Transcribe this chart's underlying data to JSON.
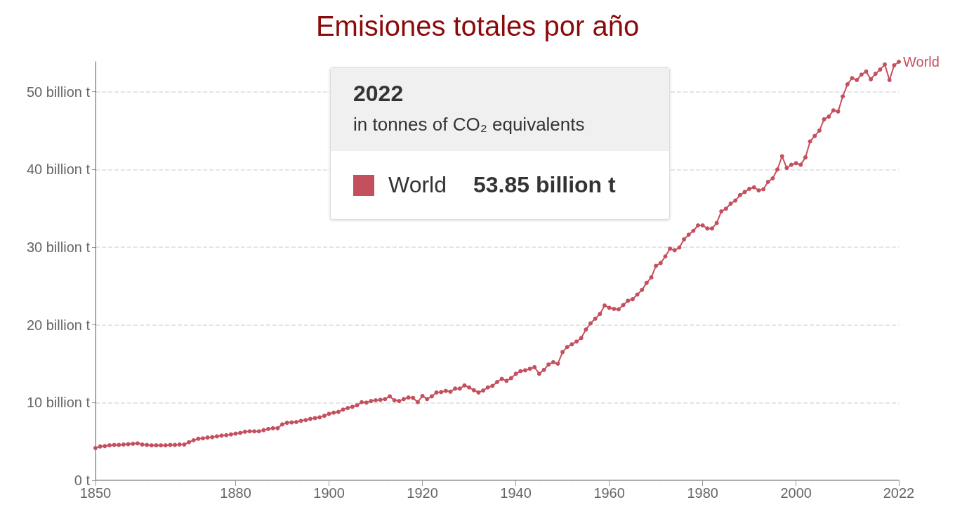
{
  "chart_data": {
    "type": "line",
    "title": "Emisiones totales por año",
    "annotations": [
      "2022",
      "in tonnes of CO₂ equivalents",
      "53.85 billion t"
    ],
    "xlim": [
      1850,
      2022
    ],
    "xticks": [
      1850,
      1880,
      1900,
      1920,
      1940,
      1960,
      1980,
      2000,
      2022
    ],
    "ylim": [
      0,
      53.85
    ],
    "yticks": [
      {
        "value": 0,
        "label": "0 t"
      },
      {
        "value": 10,
        "label": "10 billion t"
      },
      {
        "value": 20,
        "label": "20 billion t"
      },
      {
        "value": 30,
        "label": "30 billion t"
      },
      {
        "value": 40,
        "label": "40 billion t"
      },
      {
        "value": 50,
        "label": "50 billion t"
      }
    ],
    "grid": "y",
    "legend": "top",
    "marker": "circle",
    "line_style": "solid",
    "series": [
      {
        "name": "World",
        "color": "#c4505e",
        "x": [
          1850,
          1851,
          1852,
          1853,
          1854,
          1855,
          1856,
          1857,
          1858,
          1859,
          1860,
          1861,
          1862,
          1863,
          1864,
          1865,
          1866,
          1867,
          1868,
          1869,
          1870,
          1871,
          1872,
          1873,
          1874,
          1875,
          1876,
          1877,
          1878,
          1879,
          1880,
          1881,
          1882,
          1883,
          1884,
          1885,
          1886,
          1887,
          1888,
          1889,
          1890,
          1891,
          1892,
          1893,
          1894,
          1895,
          1896,
          1897,
          1898,
          1899,
          1900,
          1901,
          1902,
          1903,
          1904,
          1905,
          1906,
          1907,
          1908,
          1909,
          1910,
          1911,
          1912,
          1913,
          1914,
          1915,
          1916,
          1917,
          1918,
          1919,
          1920,
          1921,
          1922,
          1923,
          1924,
          1925,
          1926,
          1927,
          1928,
          1929,
          1930,
          1931,
          1932,
          1933,
          1934,
          1935,
          1936,
          1937,
          1938,
          1939,
          1940,
          1941,
          1942,
          1943,
          1944,
          1945,
          1946,
          1947,
          1948,
          1949,
          1950,
          1951,
          1952,
          1953,
          1954,
          1955,
          1956,
          1957,
          1958,
          1959,
          1960,
          1961,
          1962,
          1963,
          1964,
          1965,
          1966,
          1967,
          1968,
          1969,
          1970,
          1971,
          1972,
          1973,
          1974,
          1975,
          1976,
          1977,
          1978,
          1979,
          1980,
          1981,
          1982,
          1983,
          1984,
          1985,
          1986,
          1987,
          1988,
          1989,
          1990,
          1991,
          1992,
          1993,
          1994,
          1995,
          1996,
          1997,
          1998,
          1999,
          2000,
          2001,
          2002,
          2003,
          2004,
          2005,
          2006,
          2007,
          2008,
          2009,
          2010,
          2011,
          2012,
          2013,
          2014,
          2015,
          2016,
          2017,
          2018,
          2019,
          2020,
          2021,
          2022
        ],
        "values": [
          4.15,
          4.35,
          4.4,
          4.5,
          4.55,
          4.55,
          4.6,
          4.65,
          4.7,
          4.75,
          4.6,
          4.55,
          4.5,
          4.5,
          4.5,
          4.5,
          4.55,
          4.55,
          4.6,
          4.6,
          4.9,
          5.15,
          5.35,
          5.4,
          5.5,
          5.55,
          5.65,
          5.75,
          5.8,
          5.9,
          6.0,
          6.1,
          6.25,
          6.3,
          6.3,
          6.3,
          6.45,
          6.6,
          6.7,
          6.7,
          7.2,
          7.4,
          7.45,
          7.5,
          7.65,
          7.75,
          7.9,
          8.0,
          8.1,
          8.3,
          8.55,
          8.7,
          8.8,
          9.1,
          9.3,
          9.45,
          9.65,
          10.05,
          10.0,
          10.2,
          10.3,
          10.35,
          10.45,
          10.8,
          10.3,
          10.2,
          10.45,
          10.65,
          10.6,
          10.05,
          10.85,
          10.45,
          10.8,
          11.3,
          11.35,
          11.5,
          11.4,
          11.8,
          11.8,
          12.2,
          11.95,
          11.6,
          11.3,
          11.55,
          11.95,
          12.15,
          12.65,
          13.05,
          12.8,
          13.15,
          13.7,
          14.05,
          14.15,
          14.35,
          14.55,
          13.7,
          14.2,
          14.9,
          15.2,
          15.0,
          16.5,
          17.15,
          17.5,
          17.85,
          18.3,
          19.4,
          20.2,
          20.8,
          21.4,
          22.5,
          22.2,
          22.05,
          22.0,
          22.55,
          23.1,
          23.3,
          23.9,
          24.5,
          25.4,
          26.1,
          27.6,
          27.95,
          28.8,
          29.8,
          29.6,
          29.95,
          31.0,
          31.6,
          32.1,
          32.8,
          32.8,
          32.4,
          32.4,
          33.1,
          34.6,
          34.95,
          35.6,
          36.0,
          36.7,
          37.1,
          37.5,
          37.7,
          37.3,
          37.45,
          38.4,
          38.85,
          40.0,
          41.7,
          40.2,
          40.6,
          40.8,
          40.6,
          41.55,
          43.6,
          44.3,
          45.0,
          46.45,
          46.8,
          47.6,
          47.45,
          49.4,
          50.95,
          51.75,
          51.5,
          52.2,
          52.6,
          51.6,
          52.3,
          52.85,
          53.5,
          51.5,
          53.4,
          53.85
        ]
      }
    ]
  }
}
